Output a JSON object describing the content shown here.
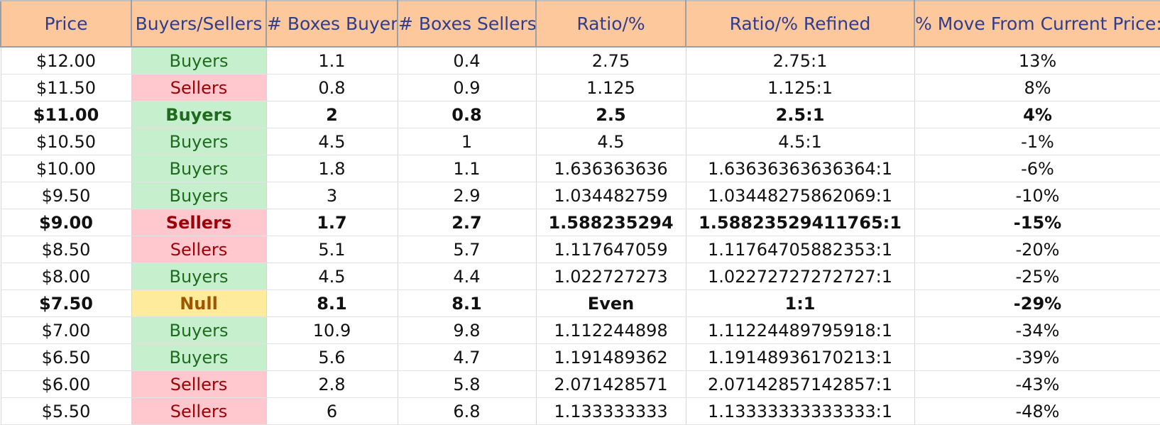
{
  "headers": [
    "Price",
    "Buyers/Sellers",
    "# Boxes Buyers",
    "# Boxes Sellers",
    "Ratio/%",
    "Ratio/% Refined",
    "% Move From Current Price:"
  ],
  "side_colors": {
    "Buyers": {
      "bg": "#c6efce",
      "fg": "#1e6b1e"
    },
    "Sellers": {
      "bg": "#ffc7ce",
      "fg": "#9c0006"
    },
    "Null": {
      "bg": "#ffeb9c",
      "fg": "#9c5700"
    }
  },
  "rows": [
    {
      "price": "$12.00",
      "side": "Buyers",
      "buyers": "1.1",
      "sellers": "0.4",
      "ratio": "2.75",
      "refined": "2.75:1",
      "move": "13%",
      "bold": false
    },
    {
      "price": "$11.50",
      "side": "Sellers",
      "buyers": "0.8",
      "sellers": "0.9",
      "ratio": "1.125",
      "refined": "1.125:1",
      "move": "8%",
      "bold": false
    },
    {
      "price": "$11.00",
      "side": "Buyers",
      "buyers": "2",
      "sellers": "0.8",
      "ratio": "2.5",
      "refined": "2.5:1",
      "move": "4%",
      "bold": true
    },
    {
      "price": "$10.50",
      "side": "Buyers",
      "buyers": "4.5",
      "sellers": "1",
      "ratio": "4.5",
      "refined": "4.5:1",
      "move": "-1%",
      "bold": false
    },
    {
      "price": "$10.00",
      "side": "Buyers",
      "buyers": "1.8",
      "sellers": "1.1",
      "ratio": "1.636363636",
      "refined": "1.63636363636364:1",
      "move": "-6%",
      "bold": false
    },
    {
      "price": "$9.50",
      "side": "Buyers",
      "buyers": "3",
      "sellers": "2.9",
      "ratio": "1.034482759",
      "refined": "1.03448275862069:1",
      "move": "-10%",
      "bold": false
    },
    {
      "price": "$9.00",
      "side": "Sellers",
      "buyers": "1.7",
      "sellers": "2.7",
      "ratio": "1.588235294",
      "refined": "1.58823529411765:1",
      "move": "-15%",
      "bold": true
    },
    {
      "price": "$8.50",
      "side": "Sellers",
      "buyers": "5.1",
      "sellers": "5.7",
      "ratio": "1.117647059",
      "refined": "1.11764705882353:1",
      "move": "-20%",
      "bold": false
    },
    {
      "price": "$8.00",
      "side": "Buyers",
      "buyers": "4.5",
      "sellers": "4.4",
      "ratio": "1.022727273",
      "refined": "1.02272727272727:1",
      "move": "-25%",
      "bold": false
    },
    {
      "price": "$7.50",
      "side": "Null",
      "buyers": "8.1",
      "sellers": "8.1",
      "ratio": "Even",
      "refined": "1:1",
      "move": "-29%",
      "bold": true
    },
    {
      "price": "$7.00",
      "side": "Buyers",
      "buyers": "10.9",
      "sellers": "9.8",
      "ratio": "1.112244898",
      "refined": "1.11224489795918:1",
      "move": "-34%",
      "bold": false
    },
    {
      "price": "$6.50",
      "side": "Buyers",
      "buyers": "5.6",
      "sellers": "4.7",
      "ratio": "1.191489362",
      "refined": "1.19148936170213:1",
      "move": "-39%",
      "bold": false
    },
    {
      "price": "$6.00",
      "side": "Sellers",
      "buyers": "2.8",
      "sellers": "5.8",
      "ratio": "2.071428571",
      "refined": "2.07142857142857:1",
      "move": "-43%",
      "bold": false
    },
    {
      "price": "$5.50",
      "side": "Sellers",
      "buyers": "6",
      "sellers": "6.8",
      "ratio": "1.133333333",
      "refined": "1.13333333333333:1",
      "move": "-48%",
      "bold": false
    }
  ]
}
